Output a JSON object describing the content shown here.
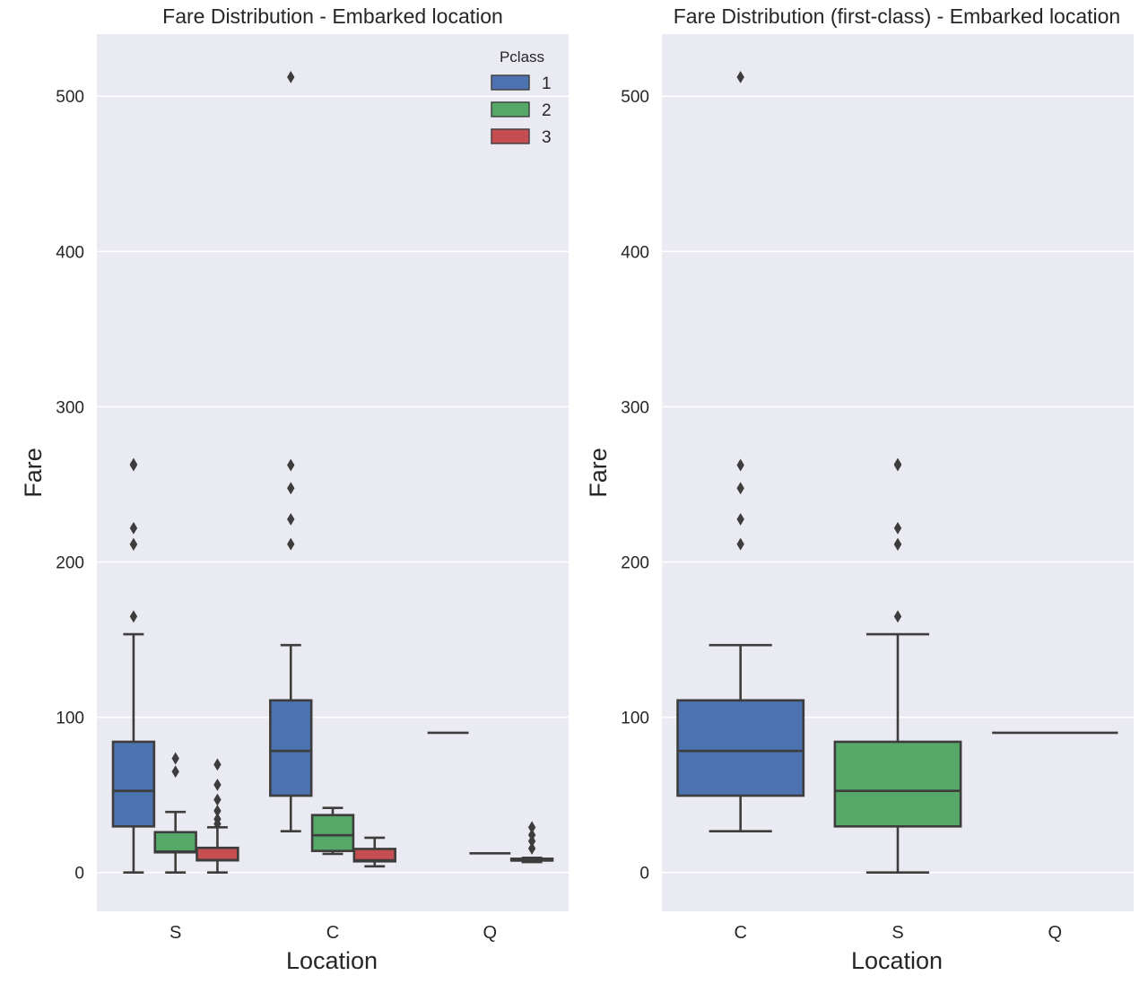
{
  "chart_data": [
    {
      "type": "box",
      "title": "Fare Distribution - Embarked location",
      "xlabel": "Location",
      "ylabel": "Fare",
      "ylim": [
        -25,
        540
      ],
      "yticks": [
        0,
        100,
        200,
        300,
        400,
        500
      ],
      "categories": [
        "S",
        "C",
        "Q"
      ],
      "legend": {
        "title": "Pclass",
        "position": "top-right",
        "entries": [
          {
            "label": "1",
            "color": "#4c72b0"
          },
          {
            "label": "2",
            "color": "#55a868"
          },
          {
            "label": "3",
            "color": "#c44e52"
          }
        ]
      },
      "series": [
        {
          "name": "1",
          "color": "#4c72b0",
          "boxes": [
            {
              "category": "S",
              "whisker_low": 0,
              "q1": 29.7,
              "median": 52.6,
              "q3": 84.2,
              "whisker_high": 153.5,
              "outliers": [
                164.9,
                211.3,
                211.5,
                221.8,
                262.4,
                263
              ]
            },
            {
              "category": "C",
              "whisker_low": 26.6,
              "q1": 49.5,
              "median": 78.3,
              "q3": 110.9,
              "whisker_high": 146.5,
              "outliers": [
                211.5,
                227.5,
                247.5,
                262.4,
                512.3
              ]
            },
            {
              "category": "Q",
              "whisker_low": 90,
              "q1": 90,
              "median": 90,
              "q3": 90,
              "whisker_high": 90,
              "outliers": []
            }
          ]
        },
        {
          "name": "2",
          "color": "#55a868",
          "boxes": [
            {
              "category": "S",
              "whisker_low": 0,
              "q1": 13,
              "median": 13.5,
              "q3": 26,
              "whisker_high": 39,
              "outliers": [
                65,
                73.5
              ]
            },
            {
              "category": "C",
              "whisker_low": 12,
              "q1": 13.9,
              "median": 24,
              "q3": 37,
              "whisker_high": 41.6,
              "outliers": []
            },
            {
              "category": "Q",
              "whisker_low": 12.35,
              "q1": 12.35,
              "median": 12.35,
              "q3": 12.35,
              "whisker_high": 12.35,
              "outliers": []
            }
          ]
        },
        {
          "name": "3",
          "color": "#c44e52",
          "boxes": [
            {
              "category": "S",
              "whisker_low": 0,
              "q1": 7.85,
              "median": 8.05,
              "q3": 15.9,
              "whisker_high": 29.1,
              "outliers": [
                31.3,
                34.4,
                39.7,
                46.9,
                56.5,
                69.55
              ]
            },
            {
              "category": "C",
              "whisker_low": 4,
              "q1": 7.2,
              "median": 7.9,
              "q3": 15.2,
              "whisker_high": 22.4,
              "outliers": []
            },
            {
              "category": "Q",
              "whisker_low": 6.75,
              "q1": 7.75,
              "median": 7.75,
              "q3": 8.9,
              "whisker_high": 9.5,
              "outliers": [
                15.5,
                20.2,
                24.15,
                29.1
              ]
            }
          ]
        }
      ]
    },
    {
      "type": "box",
      "title": "Fare Distribution (first-class) - Embarked location",
      "xlabel": "Location",
      "ylabel": "Fare",
      "ylim": [
        -25,
        540
      ],
      "yticks": [
        0,
        100,
        200,
        300,
        400,
        500
      ],
      "categories": [
        "C",
        "S",
        "Q"
      ],
      "boxes": [
        {
          "category": "C",
          "color": "#4c72b0",
          "whisker_low": 26.6,
          "q1": 49.5,
          "median": 78.3,
          "q3": 110.9,
          "whisker_high": 146.5,
          "outliers": [
            211.5,
            227.5,
            247.5,
            262.4,
            512.3
          ]
        },
        {
          "category": "S",
          "color": "#55a868",
          "whisker_low": 0,
          "q1": 29.7,
          "median": 52.6,
          "q3": 84.2,
          "whisker_high": 153.5,
          "outliers": [
            164.9,
            211.3,
            211.5,
            221.8,
            262.4,
            263
          ]
        },
        {
          "category": "Q",
          "color": "#4c72b0",
          "whisker_low": 90,
          "q1": 90,
          "median": 90,
          "q3": 90,
          "whisker_high": 90,
          "outliers": []
        }
      ]
    }
  ]
}
